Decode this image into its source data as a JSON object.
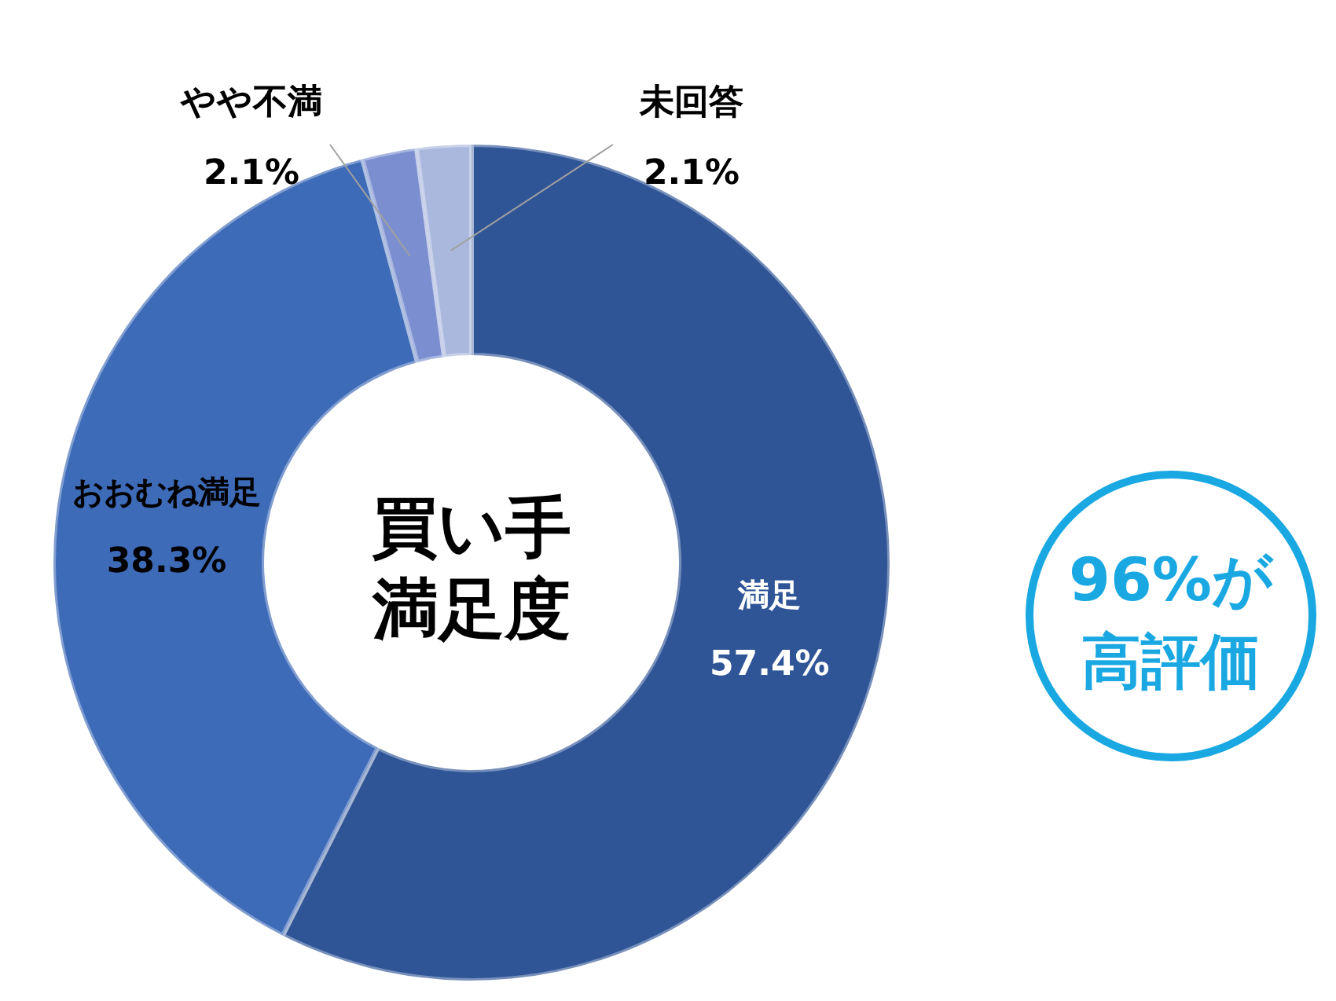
{
  "chart_data": {
    "type": "donut",
    "title": "買い手満足度",
    "categories": [
      "満足",
      "おおむね満足",
      "やや不満",
      "未回答"
    ],
    "values": [
      57.4,
      38.3,
      2.1,
      2.1
    ],
    "value_labels": [
      "57.4%",
      "38.3%",
      "2.1%",
      "2.1%"
    ],
    "colors": [
      "#2f5597",
      "#3e6bb8",
      "#7b8fd0",
      "#aab8de"
    ],
    "annotations": [
      "96%が高評価"
    ]
  }
}
